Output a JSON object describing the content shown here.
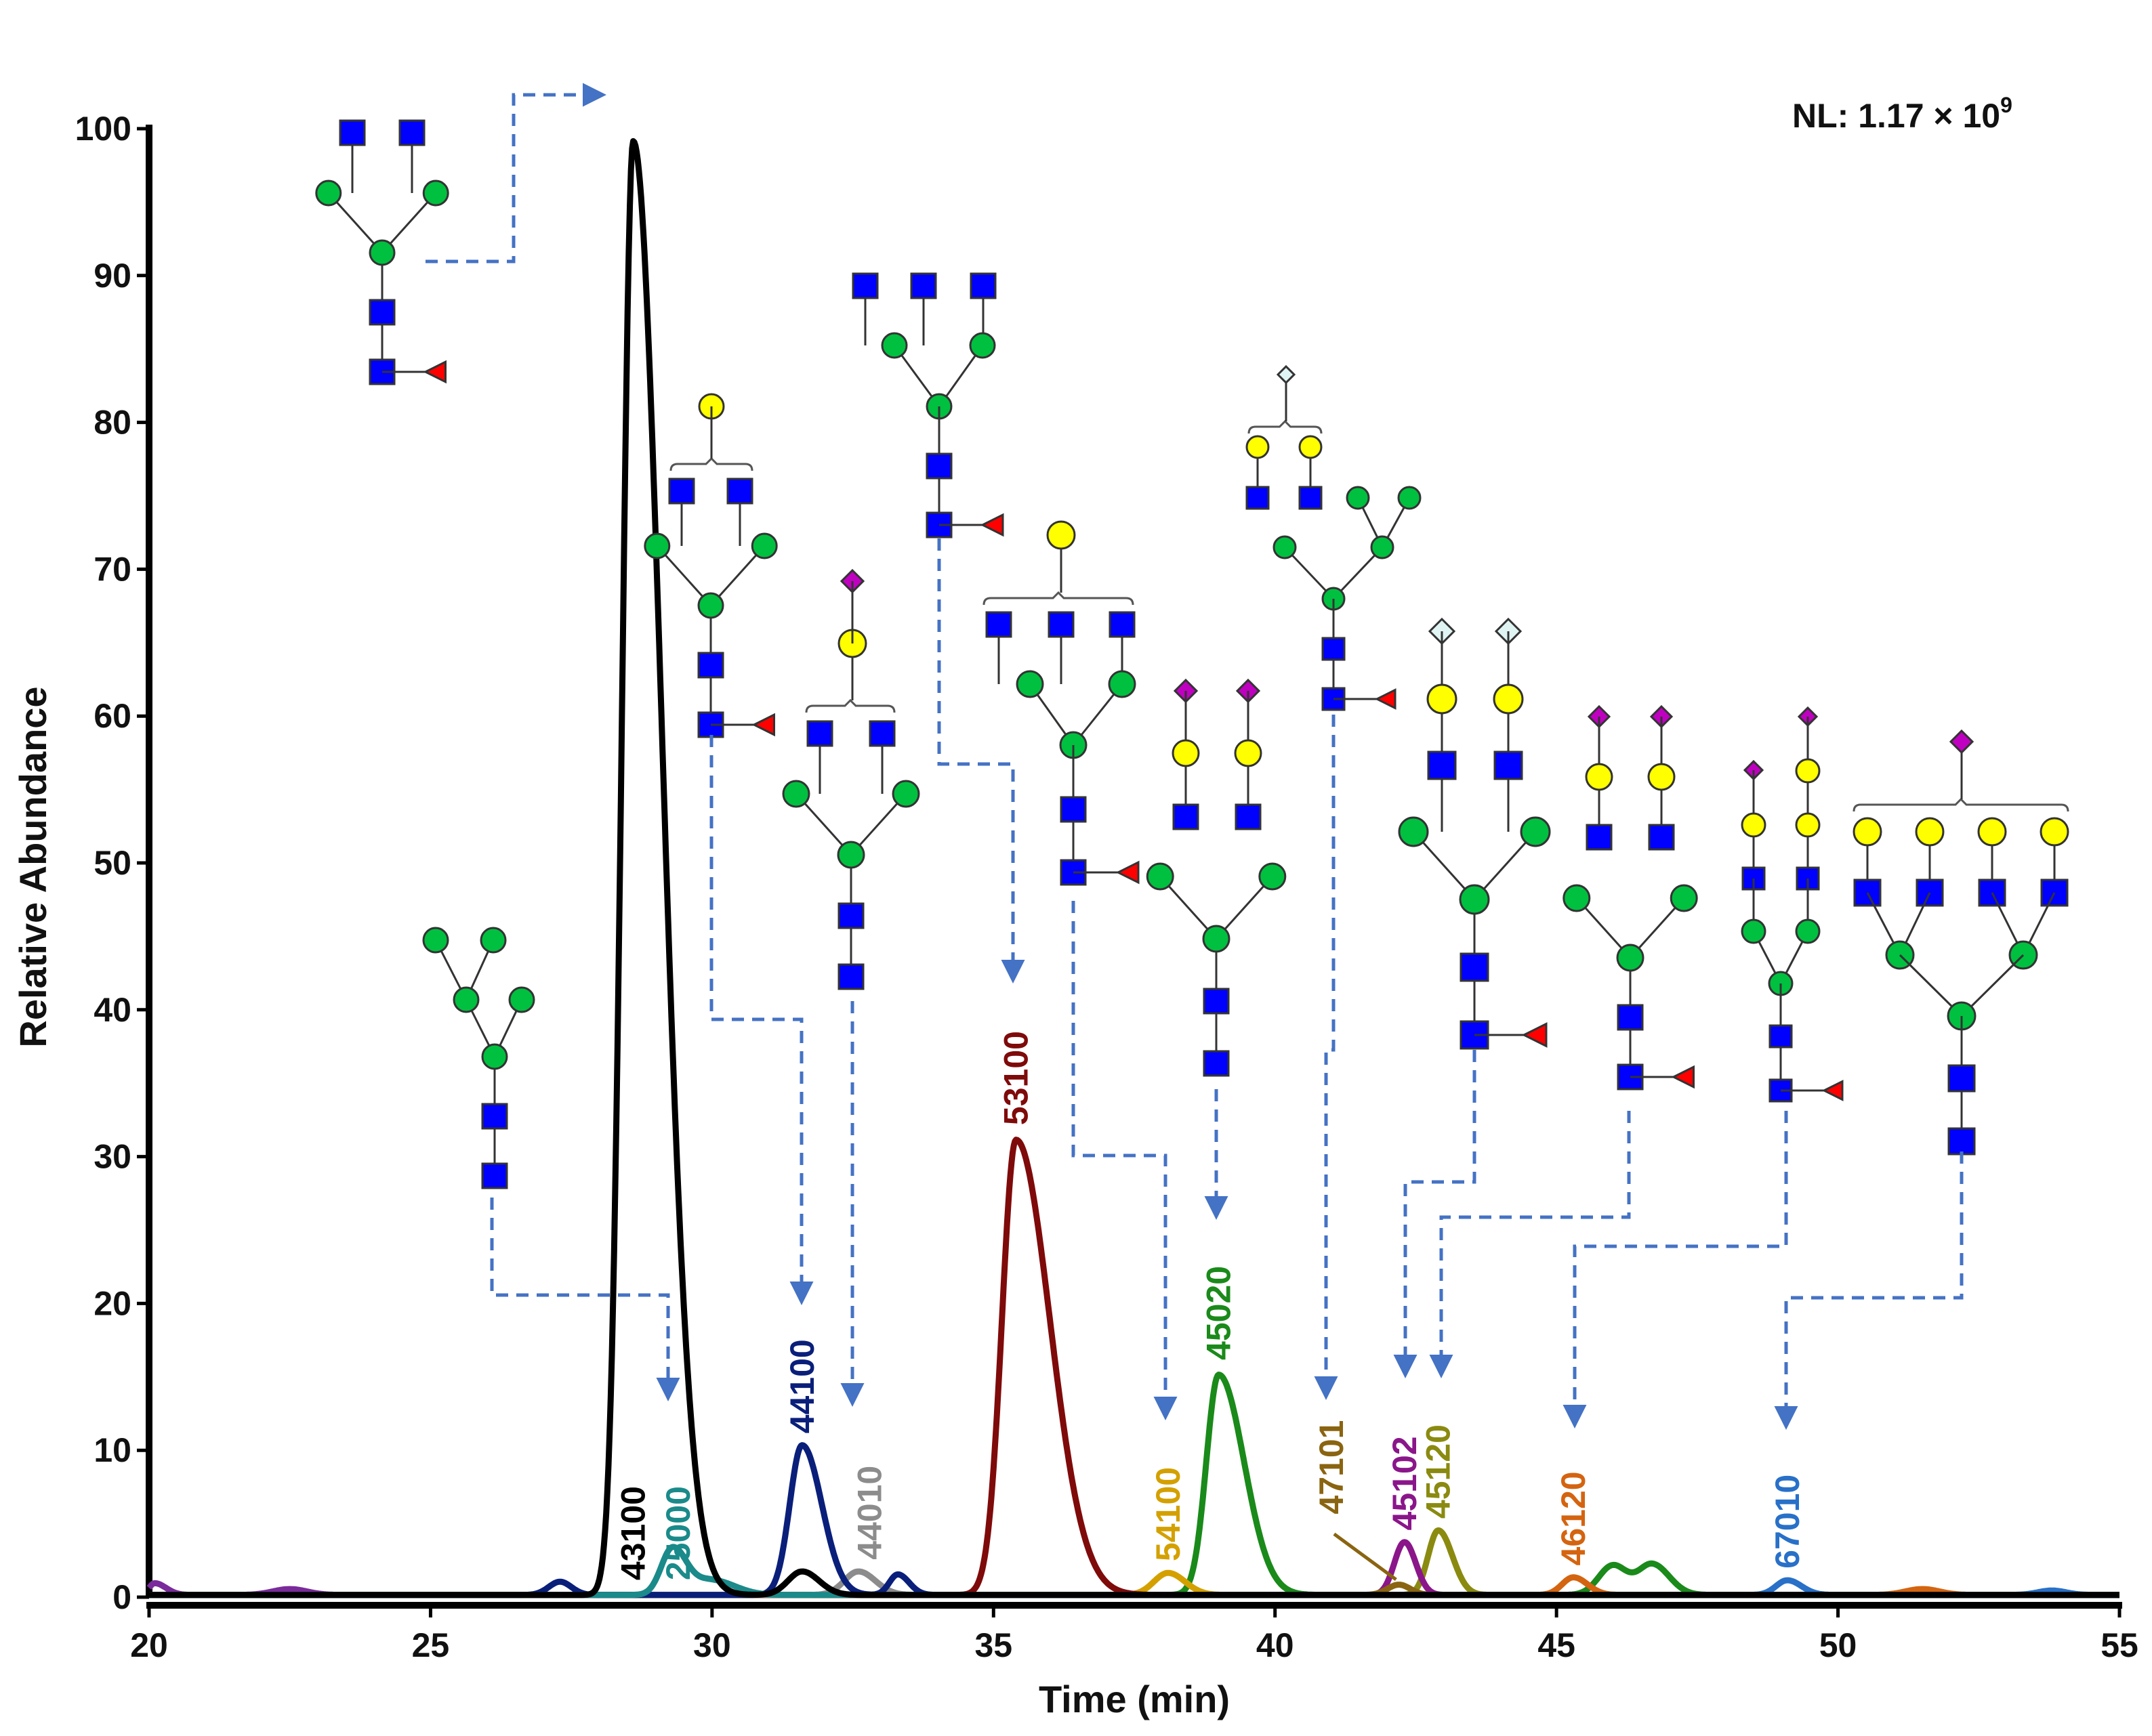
{
  "chart_data": {
    "type": "line",
    "title": "",
    "xlabel": "Time (min)",
    "ylabel": "Relative Abundance",
    "xlim": [
      20,
      55
    ],
    "ylim": [
      0,
      100
    ],
    "xticks": [
      "20",
      "25",
      "30",
      "35",
      "40",
      "45",
      "50",
      "55"
    ],
    "yticks": [
      "0",
      "10",
      "20",
      "30",
      "40",
      "50",
      "60",
      "70",
      "80",
      "90",
      "100"
    ],
    "annotation": {
      "nl_prefix": "NL: 1.17 × 10",
      "nl_exp": "9"
    },
    "series": [
      {
        "name": "43100",
        "color": "#000000",
        "peaks": [
          [
            28.6,
            99,
            0.2,
            0.5
          ],
          [
            31.6,
            1.6,
            0.25,
            0.3
          ]
        ],
        "label_x": 28.6,
        "label_anchor": 0.5,
        "label_pos": "top"
      },
      {
        "name": "25000",
        "color": "#1a8a8a",
        "peaks": [
          [
            29.3,
            3.2,
            0.2,
            0.25
          ],
          [
            30.0,
            1.0,
            0.3,
            0.4
          ]
        ],
        "label_x": 29.4,
        "label_anchor": 0.5
      },
      {
        "name": "44100",
        "color": "#0a1f7a",
        "peaks": [
          [
            27.3,
            0.9,
            0.2,
            0.2
          ],
          [
            31.6,
            10.2,
            0.22,
            0.35
          ],
          [
            33.3,
            1.4,
            0.15,
            0.2
          ]
        ],
        "label_x": 31.6,
        "label_anchor": 10.5
      },
      {
        "name": "44010",
        "color": "#8c8c8c",
        "peaks": [
          [
            32.6,
            1.6,
            0.25,
            0.3
          ]
        ],
        "label_x": 32.8,
        "label_anchor": 1.9
      },
      {
        "name": "53100",
        "color": "#7f0a0a",
        "peaks": [
          [
            35.4,
            31,
            0.25,
            0.6
          ]
        ],
        "label_x": 35.4,
        "label_anchor": 31.5
      },
      {
        "name": "54100",
        "color": "#d4a000",
        "peaks": [
          [
            38.1,
            1.5,
            0.25,
            0.3
          ]
        ],
        "label_x": 38.1,
        "label_anchor": 1.8
      },
      {
        "name": "45020",
        "color": "#1a8a1a",
        "peaks": [
          [
            39.0,
            15,
            0.22,
            0.45
          ]
        ],
        "label_x": 39.0,
        "label_anchor": 15.5
      },
      {
        "name": "47101",
        "color": "#8a6410",
        "peaks": [
          [
            42.2,
            0.7,
            0.2,
            0.2
          ]
        ],
        "label_x": 41.0,
        "label_anchor": 5.0
      },
      {
        "name": "45102",
        "color": "#8a168a",
        "peaks": [
          [
            42.3,
            3.6,
            0.18,
            0.2
          ]
        ],
        "label_x": 42.3,
        "label_anchor": 3.9
      },
      {
        "name": "45120",
        "color": "#8a8a10",
        "peaks": [
          [
            42.9,
            4.4,
            0.18,
            0.25
          ]
        ],
        "label_x": 42.9,
        "label_anchor": 4.7
      },
      {
        "name": "46120",
        "color": "#d46410",
        "peaks": [
          [
            45.3,
            1.2,
            0.2,
            0.25
          ],
          [
            51.5,
            0.4,
            0.3,
            0.3
          ]
        ],
        "label_x": 45.3,
        "label_anchor": 1.5
      },
      {
        "name": "67010",
        "color": "#2870c8",
        "peaks": [
          [
            49.1,
            1.0,
            0.2,
            0.25
          ],
          [
            53.8,
            0.3,
            0.25,
            0.25
          ]
        ],
        "label_x": 49.1,
        "label_anchor": 1.3
      },
      {
        "name": "",
        "color": "#1a8a1a",
        "peaks": [
          [
            46.0,
            2.0,
            0.25,
            0.25
          ],
          [
            46.7,
            2.1,
            0.25,
            0.3
          ]
        ]
      },
      {
        "name": "",
        "color": "#7a2a9a",
        "peaks": [
          [
            20.1,
            0.8,
            0.1,
            0.2
          ],
          [
            22.5,
            0.4,
            0.3,
            0.3
          ]
        ]
      },
      {
        "name": "",
        "color": "#808010",
        "peaks": []
      }
    ]
  }
}
